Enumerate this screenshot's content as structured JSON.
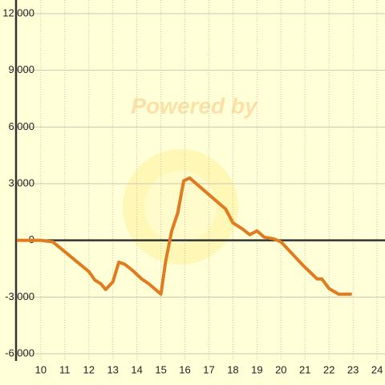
{
  "chart_data": {
    "type": "line",
    "watermark": "Powered by",
    "x": [
      9.0,
      10.0,
      10.5,
      11.0,
      12.0,
      12.25,
      12.5,
      12.7,
      13.0,
      13.25,
      13.5,
      13.8,
      14.2,
      14.5,
      15.0,
      15.2,
      15.45,
      15.7,
      15.95,
      16.2,
      17.7,
      18.0,
      18.4,
      18.7,
      19.0,
      19.3,
      19.7,
      20.0,
      20.9,
      21.5,
      21.7,
      22.0,
      22.4,
      22.95
    ],
    "series": [
      {
        "color": "#e07b20",
        "values": [
          0,
          0,
          -80,
          -600,
          -1650,
          -2100,
          -2300,
          -2600,
          -2200,
          -1150,
          -1270,
          -1570,
          -2040,
          -2300,
          -2850,
          -1100,
          500,
          1440,
          3150,
          3300,
          1650,
          930,
          600,
          300,
          500,
          170,
          80,
          -80,
          -1300,
          -2040,
          -2040,
          -2550,
          -2850,
          -2850
        ]
      }
    ],
    "xlim": [
      8.97,
      24.33
    ],
    "xticks": [
      10,
      11,
      12,
      13,
      14,
      15,
      16,
      17,
      18,
      19,
      20,
      21,
      22,
      23,
      24
    ],
    "ylim": [
      -6000,
      12000
    ],
    "yticks": [
      {
        "value": -6000,
        "label": "-6,000"
      },
      {
        "value": -3000,
        "label": "-3,000"
      },
      0,
      {
        "value": 3000,
        "label": "3,000"
      },
      {
        "value": 6000,
        "label": "6,000"
      },
      {
        "value": 9000,
        "label": "9,000"
      },
      {
        "value": 12000,
        "label": "12,000"
      }
    ],
    "grid": true
  }
}
